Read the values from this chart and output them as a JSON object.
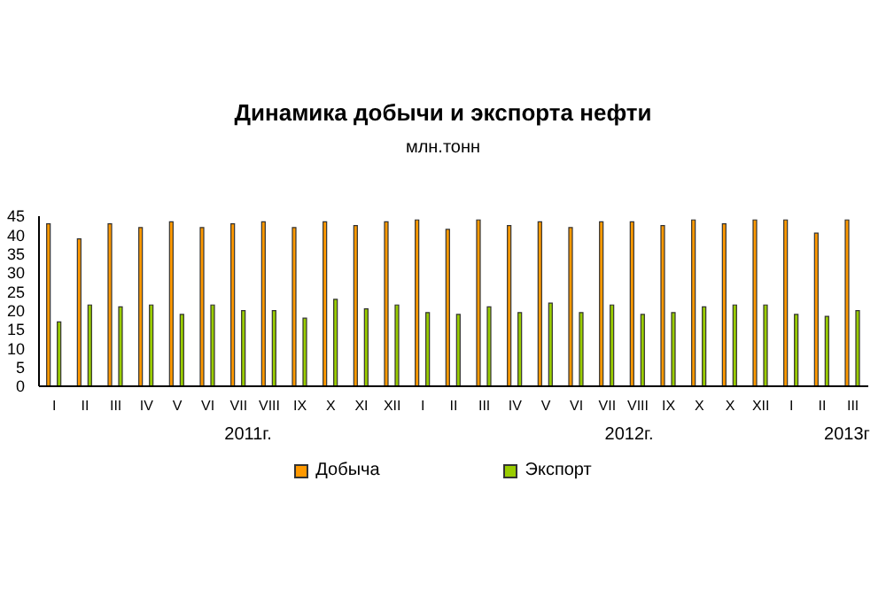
{
  "chart_data": {
    "type": "bar",
    "title": "Динамика добычи и экспорта нефти",
    "subtitle": "млн.тонн",
    "categories": [
      "I",
      "II",
      "III",
      "IV",
      "V",
      "VI",
      "VII",
      "VIII",
      "IX",
      "X",
      "XI",
      "XII",
      "I",
      "II",
      "III",
      "IV",
      "V",
      "VI",
      "VII",
      "VIII",
      "IX",
      "X",
      "X",
      "XII",
      "I",
      "II",
      "III"
    ],
    "series": [
      {
        "name": "Добыча",
        "color": "#ff9900",
        "values": [
          43,
          39,
          43,
          42,
          43.5,
          42,
          43,
          43.5,
          42,
          43.5,
          42.5,
          43.5,
          44,
          41.5,
          44,
          42.5,
          43.5,
          42,
          43.5,
          43.5,
          42.5,
          44,
          43,
          44,
          44,
          40.5,
          44
        ]
      },
      {
        "name": "Экспорт",
        "color": "#99cc00",
        "values": [
          17,
          21.5,
          21,
          21.5,
          19,
          21.5,
          20,
          20,
          18,
          23,
          20.5,
          21.5,
          19.5,
          19,
          21,
          19.5,
          22,
          19.5,
          21.5,
          19,
          19.5,
          21,
          21.5,
          21.5,
          19,
          18.5,
          20
        ]
      }
    ],
    "ylim": [
      0,
      45
    ],
    "yticks": [
      0,
      5,
      10,
      15,
      20,
      25,
      30,
      35,
      40,
      45
    ],
    "grid": false,
    "legend": "bottom",
    "annotations": [
      "2011г.",
      "2012г.",
      "2013г"
    ]
  }
}
